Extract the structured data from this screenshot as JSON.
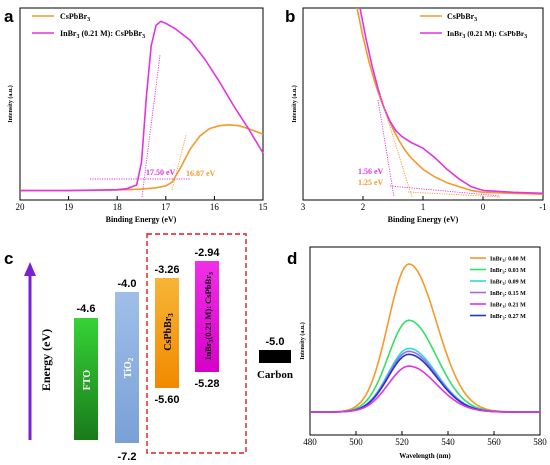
{
  "chart_data": [
    {
      "id": "a",
      "type": "line",
      "panel_label": "a",
      "xlabel": "Binding Energy (eV)",
      "ylabel": "Intensity (a.u.)",
      "xlim": [
        20,
        15
      ],
      "x_ticks": [
        "20",
        "19",
        "18",
        "17",
        "16",
        "15"
      ],
      "legend_position": "top-left",
      "series": [
        {
          "name": "CsPbBr<sub>3</sub>",
          "legend": "CsPbBr",
          "legend_sub": "3",
          "color": "#f39a2a",
          "x": [
            20,
            19,
            18,
            17.5,
            17.2,
            17.0,
            16.87,
            16.7,
            16.5,
            16.3,
            16.1,
            15.9,
            15.7,
            15.5,
            15.3,
            15.1,
            15.0
          ],
          "y": [
            0.05,
            0.05,
            0.053,
            0.058,
            0.065,
            0.075,
            0.095,
            0.17,
            0.27,
            0.34,
            0.38,
            0.395,
            0.4,
            0.395,
            0.38,
            0.36,
            0.35
          ]
        },
        {
          "name": "InBr3 (0.21 M): CsPbBr3",
          "legend_parts": [
            "InBr",
            "3",
            " (0.21 M): CsPbBr",
            "3"
          ],
          "color": "#e233e2",
          "x": [
            20,
            19,
            18,
            17.8,
            17.6,
            17.5,
            17.4,
            17.3,
            17.2,
            17.1,
            17.0,
            16.8,
            16.5,
            16.2,
            15.9,
            15.6,
            15.3,
            15.0
          ],
          "y": [
            0.05,
            0.05,
            0.055,
            0.06,
            0.08,
            0.2,
            0.55,
            0.82,
            0.93,
            0.95,
            0.94,
            0.91,
            0.85,
            0.75,
            0.63,
            0.5,
            0.38,
            0.25
          ]
        }
      ],
      "annotations": [
        {
          "text": "17.50 eV",
          "color": "#e233e2"
        },
        {
          "text": "16.87 eV",
          "color": "#f39a2a"
        }
      ]
    },
    {
      "id": "b",
      "type": "line",
      "panel_label": "b",
      "xlabel": "Binding Energy (eV)",
      "ylabel": "Intensity (a.u.)",
      "xlim": [
        3,
        -1
      ],
      "x_ticks": [
        "3",
        "2",
        "1",
        "0",
        "-1"
      ],
      "legend_position": "top-right",
      "series": [
        {
          "name": "CsPbBr3",
          "legend": "CsPbBr",
          "legend_sub": "3",
          "color": "#f39a2a",
          "x": [
            2.1,
            2.0,
            1.9,
            1.8,
            1.7,
            1.6,
            1.5,
            1.4,
            1.3,
            1.2,
            1.1,
            1.0,
            0.8,
            0.6,
            0.4,
            0.2,
            0.0,
            -0.5,
            -1.0
          ],
          "y": [
            1.0,
            0.85,
            0.72,
            0.61,
            0.52,
            0.44,
            0.37,
            0.31,
            0.26,
            0.22,
            0.19,
            0.16,
            0.12,
            0.09,
            0.07,
            0.05,
            0.04,
            0.035,
            0.03
          ]
        },
        {
          "name": "InBr3 (0.21 M): CsPbBr3",
          "legend_parts": [
            "InBr",
            "3",
            " (0.21 M): CsPbBr",
            "3"
          ],
          "color": "#e233e2",
          "x": [
            2.05,
            1.95,
            1.85,
            1.75,
            1.65,
            1.55,
            1.45,
            1.35,
            1.2,
            1.0,
            0.8,
            0.6,
            0.4,
            0.2,
            0.0,
            -0.5,
            -1.0
          ],
          "y": [
            1.0,
            0.84,
            0.7,
            0.58,
            0.48,
            0.41,
            0.36,
            0.33,
            0.3,
            0.27,
            0.22,
            0.16,
            0.11,
            0.07,
            0.05,
            0.04,
            0.035
          ]
        }
      ],
      "annotations": [
        {
          "text": "1.56 eV",
          "color": "#e233e2"
        },
        {
          "text": "1.25 eV",
          "color": "#f39a2a"
        }
      ]
    },
    {
      "id": "c",
      "type": "diagram",
      "panel_label": "c",
      "ylabel": "Energy (eV)",
      "layers": [
        {
          "name": "FTO",
          "top": "-4.6",
          "bottom": "",
          "color": "#22b522"
        },
        {
          "name": "TiO",
          "name_sub": "2",
          "top": "-4.0",
          "bottom": "-7.2",
          "color": "#8fb2e0"
        },
        {
          "name": "CsPbBr",
          "name_sub": "3",
          "top": "-3.26",
          "bottom": "-5.60",
          "color": "#f5a623"
        },
        {
          "name_parts": [
            "InBr",
            "3",
            "(0.21 M): CsPbBr",
            "3"
          ],
          "top": "-2.94",
          "bottom": "-5.28",
          "color": "#ec1ad6"
        },
        {
          "name": "Carbon",
          "top": "-5.0",
          "bottom": "",
          "color": "#000000"
        }
      ]
    },
    {
      "id": "d",
      "type": "line",
      "panel_label": "d",
      "xlabel": "Wavelength (nm)",
      "ylabel": "Intensity (a.u.)",
      "xlim": [
        480,
        580
      ],
      "x_ticks": [
        "480",
        "500",
        "520",
        "540",
        "560",
        "580"
      ],
      "legend_position": "top-right",
      "peak_nm": 523,
      "series": [
        {
          "legend": "InBr",
          "legend_sub": "3",
          "legend_rest": ": 0.00 M",
          "color": "#f39a2a",
          "peak": 1.0
        },
        {
          "legend": "InBr",
          "legend_sub": "3",
          "legend_rest": ": 0.03 M",
          "color": "#33e066",
          "peak": 0.62
        },
        {
          "legend": "InBr",
          "legend_sub": "3",
          "legend_rest": ": 0.09 M",
          "color": "#2fd8e0",
          "peak": 0.43
        },
        {
          "legend": "InBr",
          "legend_sub": "3",
          "legend_rest": ": 0.15 M",
          "color": "#9b6fe0",
          "peak": 0.41
        },
        {
          "legend": "InBr",
          "legend_sub": "3",
          "legend_rest": ": 0.21 M",
          "color": "#e233e2",
          "peak": 0.31
        },
        {
          "legend": "InBr",
          "legend_sub": "3",
          "legend_rest": ": 0.27 M",
          "color": "#2233d8",
          "peak": 0.39
        }
      ]
    }
  ]
}
